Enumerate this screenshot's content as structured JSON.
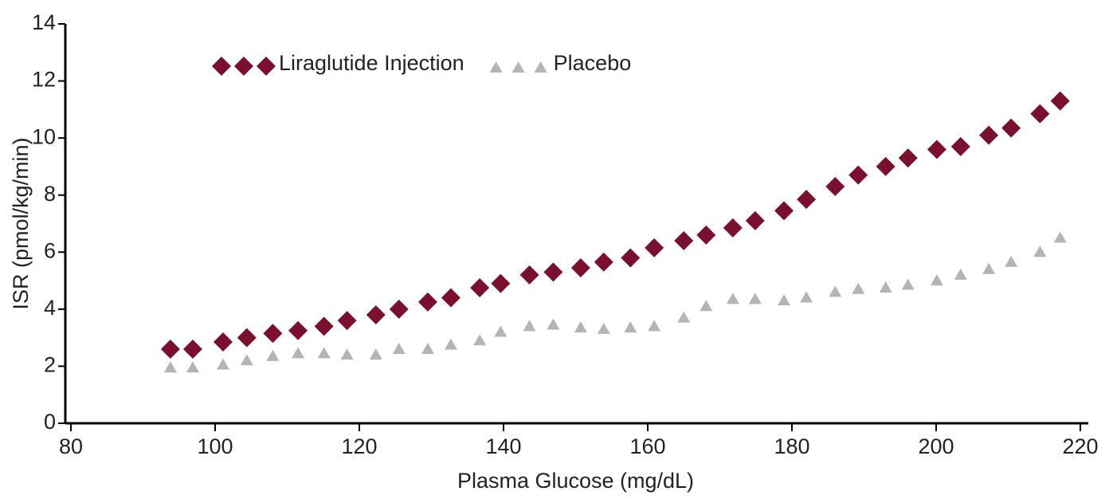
{
  "chart_data": {
    "type": "scatter",
    "x_label": "Plasma Glucose (mg/dL)",
    "y_label": "ISR (pmol/kg/min)",
    "xlim": [
      80,
      220
    ],
    "xticks": [
      80,
      100,
      120,
      140,
      160,
      180,
      200,
      220
    ],
    "ylim": [
      0,
      14
    ],
    "yticks": [
      0,
      2,
      4,
      6,
      8,
      10,
      12,
      14
    ],
    "legend": "top-left",
    "series": [
      {
        "name": "Liraglutide Injection",
        "color": "#7a0f30",
        "marker": "diamond",
        "x": [
          93.8,
          96.9,
          101.1,
          104.4,
          108.0,
          111.5,
          115.1,
          118.3,
          122.3,
          125.5,
          129.5,
          132.7,
          136.7,
          139.6,
          143.6,
          146.9,
          150.7,
          153.9,
          157.6,
          160.9,
          165.0,
          168.1,
          171.8,
          174.9,
          178.9,
          182.0,
          186.0,
          189.2,
          193.0,
          196.1,
          200.1,
          203.4,
          207.3,
          210.4,
          214.4,
          217.2
        ],
        "values": [
          2.6,
          2.6,
          2.85,
          3.0,
          3.15,
          3.25,
          3.4,
          3.6,
          3.8,
          4.0,
          4.25,
          4.4,
          4.75,
          4.9,
          5.2,
          5.3,
          5.45,
          5.65,
          5.8,
          6.15,
          6.4,
          6.6,
          6.85,
          7.1,
          7.45,
          7.85,
          8.3,
          8.7,
          9.0,
          9.3,
          9.6,
          9.7,
          10.1,
          10.35,
          10.85,
          11.3
        ]
      },
      {
        "name": "Placebo",
        "color": "#b4b4b4",
        "marker": "triangle",
        "x": [
          93.8,
          96.9,
          101.1,
          104.4,
          108.0,
          111.5,
          115.1,
          118.3,
          122.3,
          125.5,
          129.5,
          132.7,
          136.7,
          139.6,
          143.6,
          146.9,
          150.7,
          153.9,
          157.6,
          160.9,
          165.0,
          168.1,
          171.8,
          174.9,
          178.9,
          182.0,
          186.0,
          189.2,
          193.0,
          196.1,
          200.1,
          203.4,
          207.3,
          210.4,
          214.4,
          217.2
        ],
        "values": [
          1.95,
          1.95,
          2.05,
          2.2,
          2.35,
          2.45,
          2.45,
          2.4,
          2.4,
          2.6,
          2.6,
          2.75,
          2.9,
          3.2,
          3.4,
          3.45,
          3.35,
          3.3,
          3.35,
          3.4,
          3.7,
          4.1,
          4.35,
          4.35,
          4.3,
          4.4,
          4.6,
          4.7,
          4.75,
          4.85,
          5.0,
          5.2,
          5.4,
          5.65,
          6.0,
          6.5
        ]
      }
    ]
  }
}
